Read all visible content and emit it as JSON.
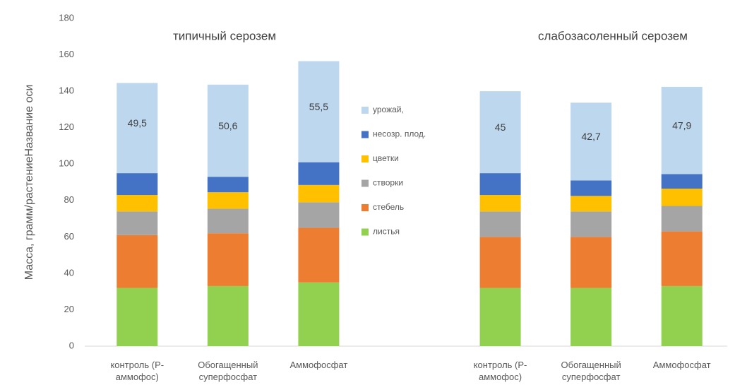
{
  "chart_data": {
    "type": "stacked_bar",
    "ylabel": "Масса, грамм/растениеНазвание оси",
    "annotations": [
      "типичный серозем",
      "слабозасоленный серозем"
    ],
    "categories": [
      "контроль (Р-аммофос)",
      "Обогащенный суперфосфат",
      "Аммофосфат",
      null,
      "контроль (Р-аммофос)",
      "Обогащенный суперфосфат",
      "Аммофосфат"
    ],
    "series": [
      {
        "name": "листья",
        "color": "#92d050",
        "values": [
          32,
          33,
          35,
          null,
          32,
          32,
          33
        ]
      },
      {
        "name": "стебель",
        "color": "#ed7d31",
        "values": [
          29,
          29,
          30,
          null,
          28,
          28,
          30
        ]
      },
      {
        "name": "створки",
        "color": "#a5a5a5",
        "values": [
          13,
          13.5,
          14,
          null,
          14,
          14,
          14
        ]
      },
      {
        "name": "цветки",
        "color": "#ffc000",
        "values": [
          9,
          9,
          9.5,
          null,
          9,
          8.5,
          9.5
        ]
      },
      {
        "name": "несозр. плод.",
        "color": "#4472c4",
        "values": [
          12,
          8.5,
          12.5,
          null,
          12,
          8.5,
          8
        ]
      },
      {
        "name": "урожай,",
        "color": "#bdd7ee",
        "values": [
          49.5,
          50.6,
          55.5,
          null,
          45,
          42.7,
          47.9
        ],
        "value_labels": [
          "49,5",
          "50,6",
          "55,5",
          null,
          "45",
          "42,7",
          "47,9"
        ]
      }
    ],
    "ylim": [
      0,
      180
    ],
    "yticks": [
      0,
      20,
      40,
      60,
      80,
      100,
      120,
      140,
      160,
      180
    ],
    "grid": false,
    "legend": "center"
  }
}
